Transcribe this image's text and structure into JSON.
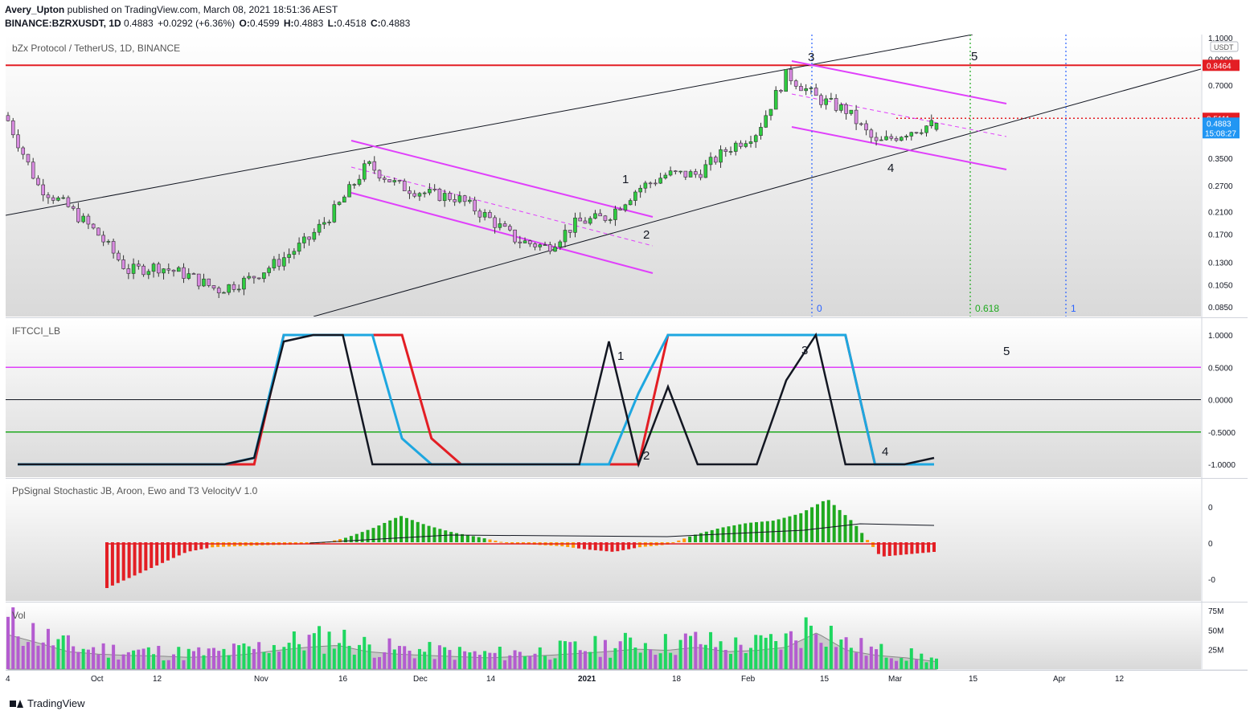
{
  "header": {
    "publisher": "Avery_Upton",
    "published_text": "published on TradingView.com, March 08, 2021 18:51:36 AEST",
    "symbol": "BINANCE:BZRXUSDT, 1D",
    "price": "0.4883",
    "change": "+0.0292 (+6.36%)",
    "o_label": "O:",
    "o": "0.4599",
    "h_label": "H:",
    "h": "0.4883",
    "l_label": "L:",
    "l": "0.4518",
    "c_label": "C:",
    "c": "0.4883"
  },
  "panes": {
    "main_title": "bZx Protocol / TetherUS, 1D, BINANCE",
    "ift_title": "IFTCCI_LB",
    "pp_title": "PpSignal Stochastic JB, Aroon, Ewo and T3 VelocityV 1.0",
    "vol_title": "Vol"
  },
  "price_axis": {
    "unit": "USDT",
    "ticks": [
      "1.1000",
      "0.9000",
      "0.7000",
      "0.5000",
      "0.3500",
      "0.2700",
      "0.2100",
      "0.1700",
      "0.1300",
      "0.1050",
      "0.0850"
    ],
    "tag_resistance": "0.8464",
    "tag_level": "0.5111",
    "tag_last": "0.4883",
    "tag_countdown": "15:08:27"
  },
  "ift_axis": [
    "1.0000",
    "0.5000",
    "0.0000",
    "-0.5000",
    "-1.0000"
  ],
  "pp_axis": [
    "0",
    "0",
    "-0"
  ],
  "vol_axis": [
    "75M",
    "50M",
    "25M"
  ],
  "time_axis": [
    "4",
    "Oct",
    "12",
    "Nov",
    "16",
    "Dec",
    "14",
    "2021",
    "18",
    "Feb",
    "15",
    "Mar",
    "15",
    "Apr",
    "12"
  ],
  "annotations": {
    "wave_main": [
      "1",
      "2",
      "3",
      "4",
      "5"
    ],
    "wave_ift": [
      "1",
      "2",
      "3",
      "4",
      "5"
    ],
    "fib": [
      "0",
      "0.618",
      "1"
    ]
  },
  "colors": {
    "up": "#26a69a",
    "up_candle": "#2ecc40",
    "down_candle": "#d88be0",
    "channel": "#e040fb",
    "resistance": "#e31e24",
    "cyan": "#1ea7e0",
    "green_line": "#1faa1f",
    "orange": "#ff9800"
  },
  "chart_data": {
    "type": "candlestick",
    "symbol": "BINANCE:BZRXUSDT",
    "interval": "1D",
    "y_scale": "log",
    "ylim": [
      0.08,
      1.1
    ],
    "x_range": [
      "2020-09-04",
      "2021-04-20"
    ],
    "last": {
      "open": 0.4599,
      "high": 0.4883,
      "low": 0.4518,
      "close": 0.4883
    },
    "levels": {
      "resistance": 0.8464,
      "dotted_level": 0.5111
    },
    "closes_weekly": [
      0.5,
      0.27,
      0.22,
      0.17,
      0.12,
      0.125,
      0.115,
      0.1,
      0.11,
      0.13,
      0.16,
      0.22,
      0.33,
      0.27,
      0.25,
      0.24,
      0.2,
      0.16,
      0.15,
      0.19,
      0.2,
      0.26,
      0.3,
      0.3,
      0.38,
      0.45,
      0.78,
      0.62,
      0.55,
      0.4,
      0.45,
      0.4883
    ],
    "ift_black": [
      -1,
      -1,
      -1,
      -1,
      -1,
      -1,
      -1,
      -1,
      -0.9,
      0.9,
      1,
      1,
      -1,
      -1,
      -1,
      -1,
      -1,
      -1,
      -1,
      -1,
      0.9,
      -1,
      0.2,
      -1,
      -1,
      -1,
      0.3,
      1,
      -1,
      -1,
      -1,
      -0.9
    ],
    "ift_cyan": [
      -1,
      -1,
      -1,
      -1,
      -1,
      -1,
      -1,
      -1,
      -0.9,
      1,
      1,
      1,
      1,
      -0.6,
      -1,
      -1,
      -1,
      -1,
      -1,
      -1,
      -1,
      0.1,
      1,
      1,
      1,
      1,
      1,
      1,
      1,
      -1,
      -1,
      -1
    ],
    "ift_red": [
      -1,
      -1,
      -1,
      -1,
      -1,
      -1,
      -1,
      -1,
      -1,
      1,
      1,
      1,
      1,
      1,
      -0.6,
      -1,
      -1,
      -1,
      -1,
      -1,
      -1,
      -1,
      1,
      1,
      1,
      1,
      1,
      1,
      1,
      -1,
      -1,
      -1
    ],
    "ift_levels": [
      0.5,
      0,
      -0.5
    ],
    "histogram": [
      -0.95,
      -0.7,
      -0.45,
      -0.2,
      -0.1,
      -0.08,
      -0.06,
      -0.05,
      -0.03,
      0.1,
      0.3,
      0.55,
      0.35,
      0.2,
      0.1,
      -0.02,
      -0.05,
      -0.08,
      -0.15,
      -0.2,
      -0.1,
      -0.05,
      0.15,
      0.3,
      0.4,
      0.45,
      0.6,
      0.9,
      0.4,
      -0.3,
      -0.25,
      -0.2
    ],
    "volume_million": [
      55,
      42,
      28,
      24,
      22,
      21,
      19,
      20,
      24,
      30,
      35,
      38,
      28,
      24,
      22,
      20,
      18,
      20,
      22,
      25,
      28,
      32,
      30,
      35,
      28,
      30,
      35,
      58,
      30,
      22,
      18,
      12
    ]
  }
}
